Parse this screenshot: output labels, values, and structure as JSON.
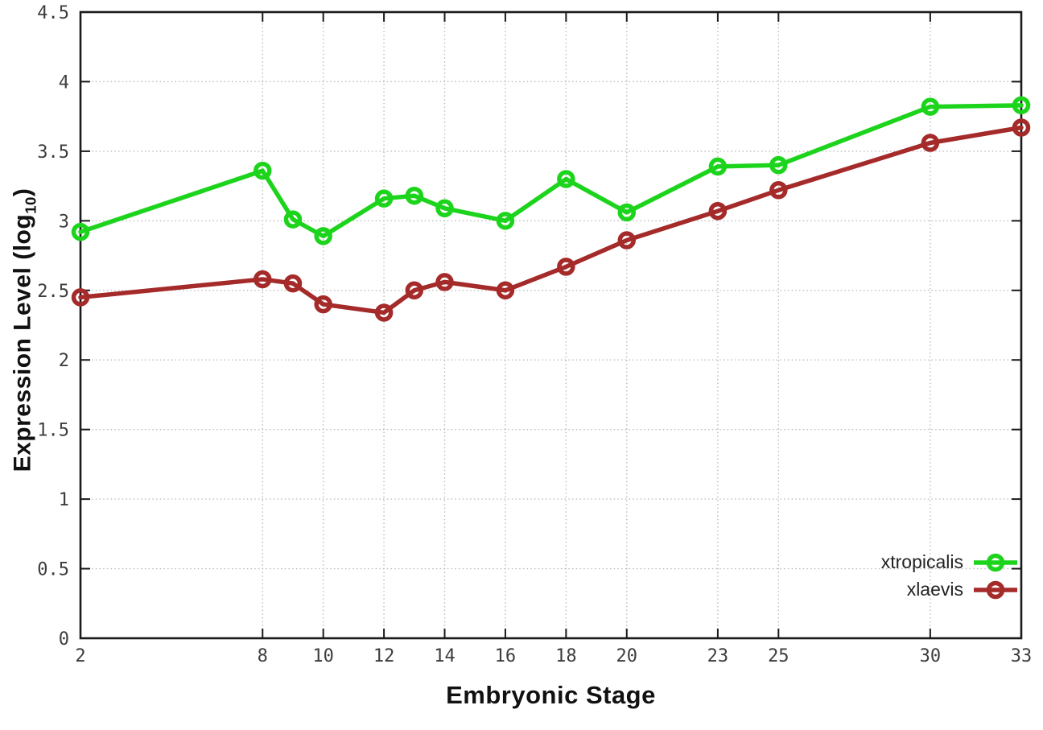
{
  "chart_data": {
    "type": "line",
    "title": "",
    "xlabel": "Embryonic Stage",
    "ylabel": {
      "prefix": "Expression Level (log",
      "sub": "10",
      "suffix": ")"
    },
    "x_range": [
      2,
      33
    ],
    "y_range": [
      0,
      4.5
    ],
    "x_ticks": [
      2,
      8,
      10,
      12,
      14,
      16,
      18,
      20,
      23,
      25,
      30,
      33
    ],
    "y_ticks": [
      0,
      0.5,
      1,
      1.5,
      2,
      2.5,
      3,
      3.5,
      4,
      4.5
    ],
    "grid": true,
    "legend_position": "bottom-right",
    "colors": {
      "border": "#1a1a1a",
      "grid": "#bcbcbc",
      "tick_text": "#3d3d3d"
    },
    "series": [
      {
        "name": "xtropicalis",
        "color": "#1dd41d",
        "marker": "open-circle",
        "points": [
          [
            2,
            2.92
          ],
          [
            8,
            3.36
          ],
          [
            9,
            3.01
          ],
          [
            10,
            2.89
          ],
          [
            12,
            3.16
          ],
          [
            13,
            3.18
          ],
          [
            14,
            3.09
          ],
          [
            16,
            3.0
          ],
          [
            18,
            3.3
          ],
          [
            20,
            3.06
          ],
          [
            23,
            3.39
          ],
          [
            25,
            3.4
          ],
          [
            30,
            3.82
          ],
          [
            33,
            3.83
          ]
        ]
      },
      {
        "name": "xlaevis",
        "color": "#a52a2a",
        "marker": "open-circle",
        "points": [
          [
            2,
            2.45
          ],
          [
            8,
            2.58
          ],
          [
            9,
            2.55
          ],
          [
            10,
            2.4
          ],
          [
            12,
            2.34
          ],
          [
            13,
            2.5
          ],
          [
            14,
            2.56
          ],
          [
            16,
            2.5
          ],
          [
            18,
            2.67
          ],
          [
            20,
            2.86
          ],
          [
            23,
            3.07
          ],
          [
            25,
            3.22
          ],
          [
            30,
            3.56
          ],
          [
            33,
            3.67
          ]
        ]
      }
    ]
  }
}
